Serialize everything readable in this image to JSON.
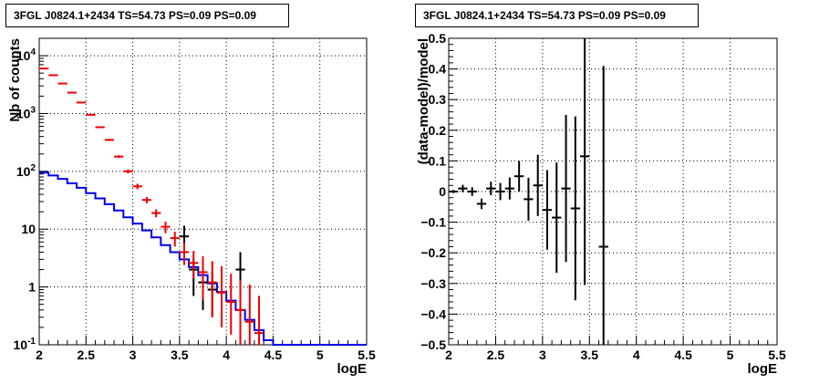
{
  "chart_data": [
    {
      "type": "line",
      "title": "3FGL J0824.1+2434 TS=54.73 PS=0.09 PS=0.09",
      "xlabel": "logE",
      "ylabel": "Nb of counts",
      "xlim": [
        2,
        5.5
      ],
      "ylim": [
        0.1,
        20000
      ],
      "yscale": "log",
      "grid": true,
      "x_ticks": [
        "2",
        "2.5",
        "3",
        "3.5",
        "4",
        "4.5",
        "5",
        "5.5"
      ],
      "y_ticks": [
        "10^-1",
        "1",
        "10",
        "10^2",
        "10^3",
        "10^4"
      ],
      "bin_edges": [
        2.0,
        2.1,
        2.2,
        2.3,
        2.4,
        2.5,
        2.6,
        2.7,
        2.8,
        2.9,
        3.0,
        3.1,
        3.2,
        3.3,
        3.4,
        3.5,
        3.6,
        3.7,
        3.8,
        3.9,
        4.0,
        4.1,
        4.2,
        4.3,
        4.4,
        4.5,
        5.5
      ],
      "series": [
        {
          "color": "#0000ee",
          "style": "step",
          "values": [
            95,
            85,
            74,
            62,
            52,
            42,
            34,
            27,
            21,
            16,
            12.5,
            9.5,
            7.2,
            5.3,
            4.0,
            3.0,
            2.2,
            1.6,
            1.15,
            0.82,
            0.58,
            0.4,
            0.27,
            0.18,
            0.12,
            0.1
          ]
        },
        {
          "color": "#ee0000",
          "style": "points",
          "x": [
            2.05,
            2.15,
            2.25,
            2.35,
            2.45,
            2.55,
            2.65,
            2.75,
            2.85,
            2.95,
            3.05,
            3.15,
            3.25,
            3.35,
            3.45,
            3.55,
            3.65,
            3.75,
            3.85,
            3.95,
            4.05,
            4.15,
            4.25,
            4.35
          ],
          "y": [
            6000,
            4600,
            3300,
            2300,
            1550,
            950,
            580,
            350,
            180,
            100,
            55,
            32,
            19,
            11,
            7,
            4,
            2.6,
            1.8,
            1.2,
            0.8,
            0.55,
            0.4,
            0.25,
            0.16
          ],
          "y_low": [
            5900,
            4520,
            3240,
            2255,
            1515,
            925,
            560,
            335,
            170,
            92,
            49,
            28,
            16,
            8.5,
            5,
            2.4,
            1.4,
            0.6,
            0.3,
            0.2,
            0.15,
            0.1,
            0.1,
            0.1
          ],
          "y_high": [
            6100,
            4680,
            3360,
            2345,
            1585,
            975,
            600,
            365,
            190,
            108,
            61,
            36,
            22,
            13.5,
            9,
            5.8,
            4.2,
            3.4,
            2.8,
            2.3,
            1.7,
            1.3,
            1.1,
            0.7
          ]
        },
        {
          "color": "#000000",
          "style": "points",
          "x": [
            3.55,
            3.65,
            3.75,
            3.85,
            4.15
          ],
          "y": [
            7.5,
            2.0,
            1.2,
            0.9,
            2.0
          ],
          "y_low": [
            4.0,
            0.7,
            0.4,
            0.3,
            0.7
          ],
          "y_high": [
            11.5,
            3.2,
            2.3,
            1.8,
            4.0
          ]
        }
      ]
    },
    {
      "type": "scatter",
      "title": "3FGL J0824.1+2434 TS=54.73 PS=0.09 PS=0.09",
      "xlabel": "logE",
      "ylabel": "(data-model)/model",
      "xlim": [
        2,
        5.5
      ],
      "ylim": [
        -0.5,
        0.5
      ],
      "grid": true,
      "x_ticks": [
        "2",
        "2.5",
        "3",
        "3.5",
        "4",
        "4.5",
        "5",
        "5.5"
      ],
      "y_ticks": [
        "−0.5",
        "−0.4",
        "−0.3",
        "−0.2",
        "−0.1",
        "0",
        "0.1",
        "0.2",
        "0.3",
        "0.4",
        "0.5"
      ],
      "series": [
        {
          "color": "#000000",
          "x": [
            2.05,
            2.15,
            2.25,
            2.35,
            2.45,
            2.55,
            2.65,
            2.75,
            2.85,
            2.95,
            3.05,
            3.15,
            3.25,
            3.35,
            3.45,
            3.65
          ],
          "y": [
            0.0,
            0.01,
            0.0,
            -0.04,
            0.01,
            0.0,
            0.01,
            0.05,
            -0.025,
            0.02,
            -0.06,
            -0.085,
            0.01,
            -0.055,
            0.115,
            -0.18
          ],
          "y_err": [
            0.005,
            0.012,
            0.014,
            0.017,
            0.022,
            0.028,
            0.036,
            0.05,
            0.07,
            0.1,
            0.13,
            0.18,
            0.24,
            0.3,
            0.42,
            0.59
          ]
        }
      ]
    }
  ]
}
